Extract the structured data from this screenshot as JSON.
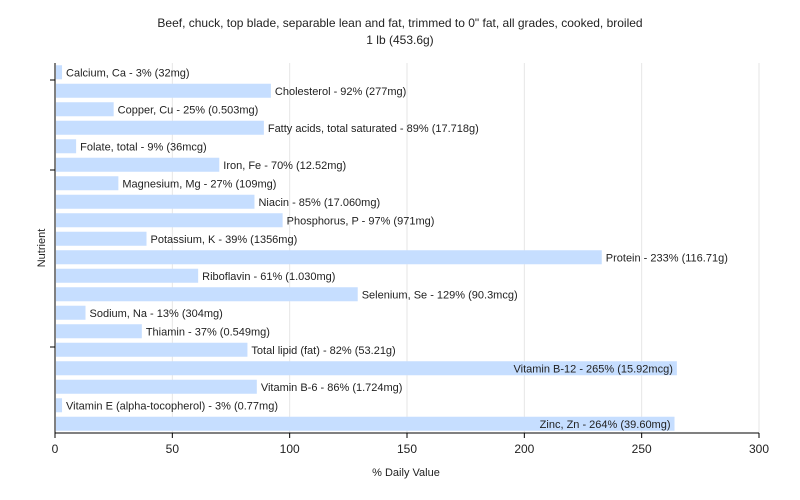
{
  "chart_data": {
    "type": "bar",
    "orientation": "horizontal",
    "title": "Beef, chuck, top blade, separable lean and  fat, trimmed to 0\" fat, all grades, cooked, broiled",
    "subtitle": "1 lb (453.6g)",
    "xlabel": "% Daily Value",
    "ylabel": "Nutrient",
    "xlim": [
      0,
      300
    ],
    "xticks": [
      0,
      50,
      100,
      150,
      200,
      250,
      300
    ],
    "grid": true,
    "colors": {
      "bar": "#c6deff",
      "grid": "#e6e6e6",
      "axis": "#000000",
      "text": "#222222"
    },
    "categories": [
      "Calcium, Ca",
      "Cholesterol",
      "Copper, Cu",
      "Fatty acids, total saturated",
      "Folate, total",
      "Iron, Fe",
      "Magnesium, Mg",
      "Niacin",
      "Phosphorus, P",
      "Potassium, K",
      "Protein",
      "Riboflavin",
      "Selenium, Se",
      "Sodium, Na",
      "Thiamin",
      "Total lipid (fat)",
      "Vitamin B-12",
      "Vitamin B-6",
      "Vitamin E (alpha-tocopherol)",
      "Zinc, Zn"
    ],
    "values": [
      3,
      92,
      25,
      89,
      9,
      70,
      27,
      85,
      97,
      39,
      233,
      61,
      129,
      13,
      37,
      82,
      265,
      86,
      3,
      264
    ],
    "labels": [
      "Calcium, Ca - 3% (32mg)",
      "Cholesterol - 92% (277mg)",
      "Copper, Cu - 25% (0.503mg)",
      "Fatty acids, total saturated - 89% (17.718g)",
      "Folate, total - 9% (36mcg)",
      "Iron, Fe - 70% (12.52mg)",
      "Magnesium, Mg - 27% (109mg)",
      "Niacin - 85% (17.060mg)",
      "Phosphorus, P - 97% (971mg)",
      "Potassium, K - 39% (1356mg)",
      "Protein - 233% (116.71g)",
      "Riboflavin - 61% (1.030mg)",
      "Selenium, Se - 129% (90.3mcg)",
      "Sodium, Na - 13% (304mg)",
      "Thiamin - 37% (0.549mg)",
      "Total lipid (fat) - 82% (53.21g)",
      "Vitamin B-12 - 265% (15.92mcg)",
      "Vitamin B-6 - 86% (1.724mg)",
      "Vitamin E (alpha-tocopherol) - 3% (0.77mg)",
      "Zinc, Zn - 264% (39.60mg)"
    ],
    "label_inside": [
      false,
      false,
      false,
      false,
      false,
      false,
      false,
      false,
      false,
      false,
      false,
      false,
      false,
      false,
      false,
      false,
      true,
      false,
      false,
      true
    ]
  }
}
